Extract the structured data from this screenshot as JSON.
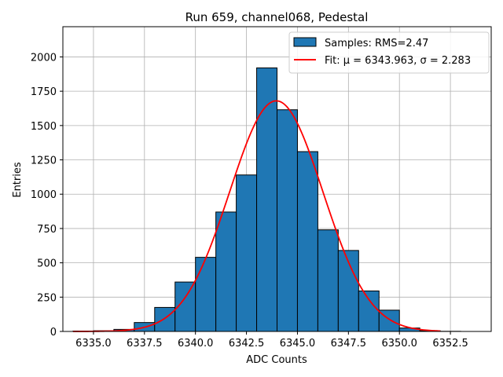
{
  "chart_data": {
    "type": "bar",
    "title": "Run 659, channel068, Pedestal",
    "xlabel": "ADC Counts",
    "ylabel": "Entries",
    "xlim": [
      6333.5,
      6354.5
    ],
    "ylim": [
      0,
      2220
    ],
    "xticks": [
      6335.0,
      6337.5,
      6340.0,
      6342.5,
      6345.0,
      6347.5,
      6350.0,
      6352.5
    ],
    "xtick_labels": [
      "6335.0",
      "6337.5",
      "6340.0",
      "6342.5",
      "6345.0",
      "6347.5",
      "6350.0",
      "6352.5"
    ],
    "yticks": [
      0,
      250,
      500,
      750,
      1000,
      1250,
      1500,
      1750,
      2000
    ],
    "ytick_labels": [
      "0",
      "250",
      "500",
      "750",
      "1000",
      "1250",
      "1500",
      "1750",
      "2000"
    ],
    "grid": true,
    "legend_position": "top-right",
    "histogram": {
      "name": "Samples: RMS=2.47",
      "color": "#1f77b4",
      "edgecolor": "#000000",
      "bins": [
        {
          "x0": 6334,
          "x1": 6335,
          "count": 3
        },
        {
          "x0": 6335,
          "x1": 6336,
          "count": 5
        },
        {
          "x0": 6336,
          "x1": 6337,
          "count": 15
        },
        {
          "x0": 6337,
          "x1": 6338,
          "count": 65
        },
        {
          "x0": 6338,
          "x1": 6339,
          "count": 175
        },
        {
          "x0": 6339,
          "x1": 6340,
          "count": 360
        },
        {
          "x0": 6340,
          "x1": 6341,
          "count": 540
        },
        {
          "x0": 6341,
          "x1": 6342,
          "count": 870
        },
        {
          "x0": 6342,
          "x1": 6343,
          "count": 1140
        },
        {
          "x0": 6343,
          "x1": 6344,
          "count": 1920
        },
        {
          "x0": 6344,
          "x1": 6345,
          "count": 1615
        },
        {
          "x0": 6345,
          "x1": 6346,
          "count": 1310
        },
        {
          "x0": 6346,
          "x1": 6347,
          "count": 740
        },
        {
          "x0": 6347,
          "x1": 6348,
          "count": 590
        },
        {
          "x0": 6348,
          "x1": 6349,
          "count": 295
        },
        {
          "x0": 6349,
          "x1": 6350,
          "count": 155
        },
        {
          "x0": 6350,
          "x1": 6351,
          "count": 25
        },
        {
          "x0": 6351,
          "x1": 6352,
          "count": 5
        },
        {
          "x0": 6352,
          "x1": 6353,
          "count": 1
        },
        {
          "x0": 6353,
          "x1": 6354,
          "count": 0
        }
      ]
    },
    "fit": {
      "name": "Fit: μ = 6343.963, σ = 2.283",
      "type": "gaussian",
      "color": "#ff0000",
      "mu": 6343.963,
      "sigma": 2.283,
      "amplitude": 1680,
      "x_range": [
        6334,
        6352
      ]
    }
  }
}
